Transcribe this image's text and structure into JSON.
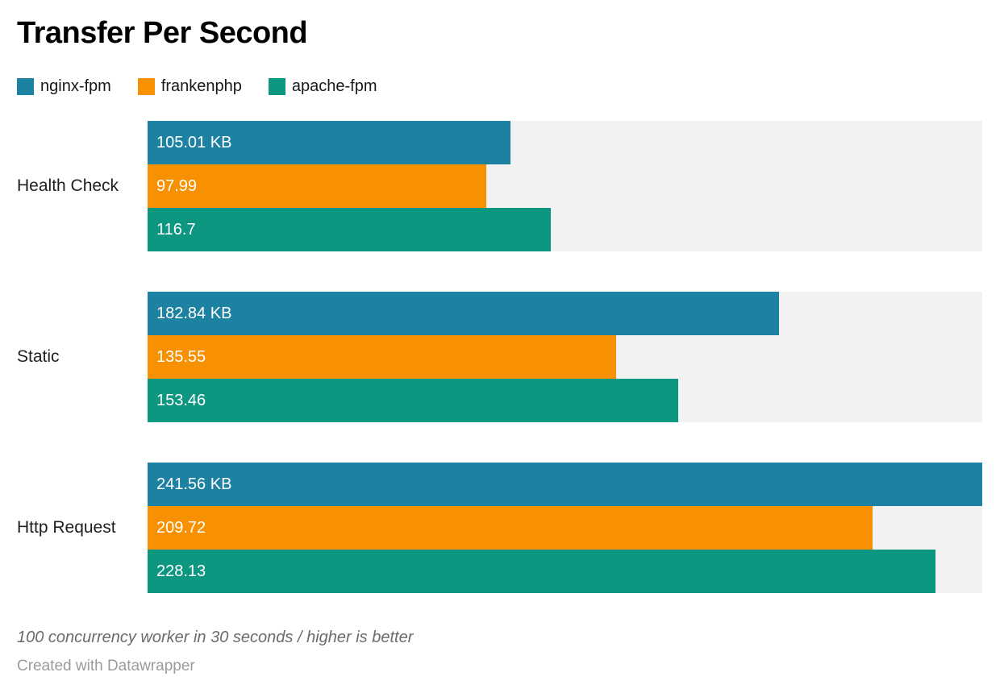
{
  "title": "Transfer Per Second",
  "legend": [
    {
      "label": "nginx-fpm",
      "color": "#1d81a2"
    },
    {
      "label": "frankenphp",
      "color": "#f79102"
    },
    {
      "label": "apache-fpm",
      "color": "#0d9680"
    }
  ],
  "chart_data": {
    "type": "bar",
    "orientation": "horizontal",
    "title": "Transfer Per Second",
    "categories": [
      "Health Check",
      "Static",
      "Http Request"
    ],
    "series": [
      {
        "name": "nginx-fpm",
        "color": "#1d81a2",
        "values": [
          105.01,
          182.84,
          241.56
        ],
        "labels": [
          "105.01 KB",
          "182.84 KB",
          "241.56 KB"
        ]
      },
      {
        "name": "frankenphp",
        "color": "#f79102",
        "values": [
          97.99,
          135.55,
          209.72
        ],
        "labels": [
          "97.99",
          "135.55",
          "209.72"
        ]
      },
      {
        "name": "apache-fpm",
        "color": "#0d9680",
        "values": [
          116.7,
          153.46,
          228.13
        ],
        "labels": [
          "116.7",
          "153.46",
          "228.13"
        ]
      }
    ],
    "unit": "KB",
    "xmax": 241.56,
    "track_color": "#f2f2f2",
    "grid": false,
    "legend_position": "top",
    "value_labels": "inside-start"
  },
  "footer": {
    "note": "100 concurrency worker in 30 seconds / higher is better",
    "attribution": "Created with Datawrapper"
  }
}
